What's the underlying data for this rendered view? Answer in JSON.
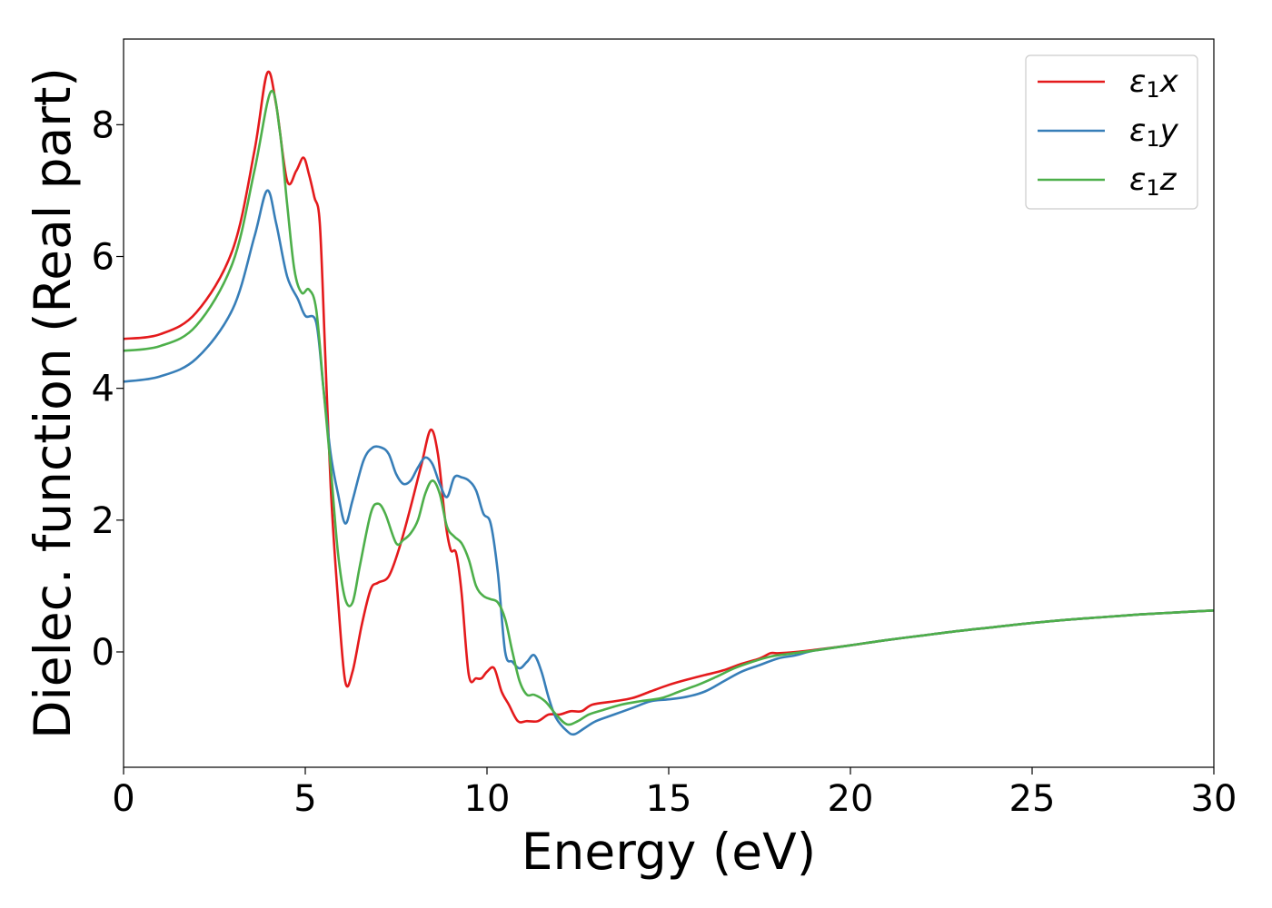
{
  "chart_data": {
    "type": "line",
    "title": "",
    "xlabel": "Energy (eV)",
    "ylabel": "Dielec. function (Real part)",
    "xlim": [
      0,
      30
    ],
    "ylim": [
      -1.75,
      9.3
    ],
    "xticks": [
      0,
      5,
      10,
      15,
      20,
      25,
      30
    ],
    "yticks": [
      0,
      2,
      4,
      6,
      8
    ],
    "grid": false,
    "legend_position": "top-right",
    "series": [
      {
        "name": "ε1x",
        "legend_base": "ε",
        "legend_sub": "1",
        "legend_suffix": "x",
        "color": "#e41a1c",
        "points": [
          [
            0,
            4.75
          ],
          [
            1,
            4.82
          ],
          [
            2,
            5.15
          ],
          [
            3,
            6.1
          ],
          [
            3.6,
            7.6
          ],
          [
            3.95,
            8.78
          ],
          [
            4.2,
            8.3
          ],
          [
            4.5,
            7.15
          ],
          [
            4.75,
            7.3
          ],
          [
            4.95,
            7.5
          ],
          [
            5.1,
            7.25
          ],
          [
            5.25,
            6.9
          ],
          [
            5.4,
            6.5
          ],
          [
            5.55,
            4.5
          ],
          [
            5.7,
            2.5
          ],
          [
            5.9,
            0.8
          ],
          [
            6.1,
            -0.45
          ],
          [
            6.3,
            -0.3
          ],
          [
            6.55,
            0.4
          ],
          [
            6.8,
            0.95
          ],
          [
            7.0,
            1.05
          ],
          [
            7.3,
            1.15
          ],
          [
            7.6,
            1.6
          ],
          [
            7.9,
            2.2
          ],
          [
            8.2,
            2.85
          ],
          [
            8.45,
            3.37
          ],
          [
            8.65,
            3.0
          ],
          [
            8.85,
            2.0
          ],
          [
            9.0,
            1.55
          ],
          [
            9.15,
            1.5
          ],
          [
            9.3,
            0.9
          ],
          [
            9.5,
            -0.35
          ],
          [
            9.7,
            -0.4
          ],
          [
            9.85,
            -0.4
          ],
          [
            10.0,
            -0.3
          ],
          [
            10.2,
            -0.25
          ],
          [
            10.4,
            -0.6
          ],
          [
            10.6,
            -0.8
          ],
          [
            10.85,
            -1.05
          ],
          [
            11.1,
            -1.05
          ],
          [
            11.4,
            -1.05
          ],
          [
            11.7,
            -0.95
          ],
          [
            12.0,
            -0.95
          ],
          [
            12.3,
            -0.9
          ],
          [
            12.6,
            -0.9
          ],
          [
            12.9,
            -0.8
          ],
          [
            13.5,
            -0.75
          ],
          [
            14.0,
            -0.7
          ],
          [
            14.5,
            -0.6
          ],
          [
            15.0,
            -0.5
          ],
          [
            15.5,
            -0.42
          ],
          [
            16.0,
            -0.35
          ],
          [
            16.5,
            -0.28
          ],
          [
            17.0,
            -0.18
          ],
          [
            17.5,
            -0.1
          ],
          [
            17.8,
            -0.02
          ],
          [
            18.0,
            -0.02
          ],
          [
            18.5,
            0.0
          ],
          [
            19.0,
            0.03
          ],
          [
            20.0,
            0.1
          ],
          [
            21.0,
            0.18
          ],
          [
            22.0,
            0.25
          ],
          [
            23.0,
            0.32
          ],
          [
            24.0,
            0.38
          ],
          [
            25.0,
            0.44
          ],
          [
            26.0,
            0.49
          ],
          [
            27.0,
            0.53
          ],
          [
            28.0,
            0.57
          ],
          [
            29.0,
            0.6
          ],
          [
            30.0,
            0.63
          ]
        ]
      },
      {
        "name": "ε1y",
        "legend_base": "ε",
        "legend_sub": "1",
        "legend_suffix": "y",
        "color": "#377eb8",
        "points": [
          [
            0,
            4.1
          ],
          [
            1,
            4.18
          ],
          [
            2,
            4.45
          ],
          [
            3,
            5.2
          ],
          [
            3.6,
            6.3
          ],
          [
            3.95,
            7.0
          ],
          [
            4.2,
            6.5
          ],
          [
            4.5,
            5.7
          ],
          [
            4.8,
            5.35
          ],
          [
            5.0,
            5.1
          ],
          [
            5.3,
            5.0
          ],
          [
            5.5,
            4.0
          ],
          [
            5.7,
            3.0
          ],
          [
            5.9,
            2.4
          ],
          [
            6.1,
            1.95
          ],
          [
            6.3,
            2.3
          ],
          [
            6.6,
            2.9
          ],
          [
            6.85,
            3.1
          ],
          [
            7.1,
            3.1
          ],
          [
            7.3,
            3.0
          ],
          [
            7.5,
            2.7
          ],
          [
            7.7,
            2.55
          ],
          [
            7.9,
            2.6
          ],
          [
            8.1,
            2.8
          ],
          [
            8.3,
            2.95
          ],
          [
            8.5,
            2.85
          ],
          [
            8.7,
            2.55
          ],
          [
            8.9,
            2.35
          ],
          [
            9.1,
            2.65
          ],
          [
            9.3,
            2.65
          ],
          [
            9.5,
            2.6
          ],
          [
            9.7,
            2.45
          ],
          [
            9.9,
            2.1
          ],
          [
            10.1,
            1.95
          ],
          [
            10.3,
            1.2
          ],
          [
            10.5,
            0.0
          ],
          [
            10.7,
            -0.15
          ],
          [
            10.9,
            -0.25
          ],
          [
            11.1,
            -0.15
          ],
          [
            11.3,
            -0.05
          ],
          [
            11.5,
            -0.3
          ],
          [
            11.7,
            -0.7
          ],
          [
            11.9,
            -1.0
          ],
          [
            12.2,
            -1.2
          ],
          [
            12.4,
            -1.25
          ],
          [
            12.7,
            -1.15
          ],
          [
            13.0,
            -1.05
          ],
          [
            13.5,
            -0.95
          ],
          [
            14.0,
            -0.85
          ],
          [
            14.5,
            -0.75
          ],
          [
            15.0,
            -0.72
          ],
          [
            15.5,
            -0.68
          ],
          [
            16.0,
            -0.6
          ],
          [
            16.5,
            -0.45
          ],
          [
            17.0,
            -0.3
          ],
          [
            17.5,
            -0.2
          ],
          [
            18.0,
            -0.1
          ],
          [
            18.5,
            -0.05
          ],
          [
            19.0,
            0.02
          ],
          [
            20.0,
            0.1
          ],
          [
            21.0,
            0.18
          ],
          [
            22.0,
            0.25
          ],
          [
            23.0,
            0.32
          ],
          [
            24.0,
            0.38
          ],
          [
            25.0,
            0.44
          ],
          [
            26.0,
            0.49
          ],
          [
            27.0,
            0.53
          ],
          [
            28.0,
            0.57
          ],
          [
            29.0,
            0.6
          ],
          [
            30.0,
            0.63
          ]
        ]
      },
      {
        "name": "ε1z",
        "legend_base": "ε",
        "legend_sub": "1",
        "legend_suffix": "z",
        "color": "#4daf4a",
        "points": [
          [
            0,
            4.57
          ],
          [
            1,
            4.64
          ],
          [
            2,
            4.95
          ],
          [
            3,
            5.9
          ],
          [
            3.6,
            7.3
          ],
          [
            4.05,
            8.5
          ],
          [
            4.3,
            7.9
          ],
          [
            4.5,
            6.8
          ],
          [
            4.7,
            5.8
          ],
          [
            4.9,
            5.45
          ],
          [
            5.1,
            5.5
          ],
          [
            5.3,
            5.2
          ],
          [
            5.5,
            4.0
          ],
          [
            5.7,
            2.8
          ],
          [
            5.9,
            1.5
          ],
          [
            6.1,
            0.8
          ],
          [
            6.3,
            0.75
          ],
          [
            6.5,
            1.3
          ],
          [
            6.8,
            2.1
          ],
          [
            7.0,
            2.25
          ],
          [
            7.2,
            2.1
          ],
          [
            7.5,
            1.65
          ],
          [
            7.7,
            1.7
          ],
          [
            7.9,
            1.8
          ],
          [
            8.1,
            2.0
          ],
          [
            8.3,
            2.4
          ],
          [
            8.5,
            2.6
          ],
          [
            8.7,
            2.4
          ],
          [
            8.9,
            1.9
          ],
          [
            9.1,
            1.75
          ],
          [
            9.3,
            1.65
          ],
          [
            9.5,
            1.4
          ],
          [
            9.7,
            1.0
          ],
          [
            9.9,
            0.85
          ],
          [
            10.1,
            0.8
          ],
          [
            10.3,
            0.75
          ],
          [
            10.5,
            0.5
          ],
          [
            10.7,
            0.0
          ],
          [
            10.9,
            -0.45
          ],
          [
            11.1,
            -0.65
          ],
          [
            11.3,
            -0.65
          ],
          [
            11.6,
            -0.75
          ],
          [
            11.9,
            -0.95
          ],
          [
            12.2,
            -1.1
          ],
          [
            12.5,
            -1.05
          ],
          [
            12.8,
            -0.95
          ],
          [
            13.2,
            -0.88
          ],
          [
            13.7,
            -0.8
          ],
          [
            14.2,
            -0.75
          ],
          [
            14.8,
            -0.7
          ],
          [
            15.3,
            -0.6
          ],
          [
            15.8,
            -0.5
          ],
          [
            16.3,
            -0.38
          ],
          [
            16.8,
            -0.25
          ],
          [
            17.3,
            -0.15
          ],
          [
            17.8,
            -0.07
          ],
          [
            18.3,
            -0.03
          ],
          [
            19.0,
            0.02
          ],
          [
            20.0,
            0.1
          ],
          [
            21.0,
            0.18
          ],
          [
            22.0,
            0.25
          ],
          [
            23.0,
            0.32
          ],
          [
            24.0,
            0.38
          ],
          [
            25.0,
            0.44
          ],
          [
            26.0,
            0.49
          ],
          [
            27.0,
            0.53
          ],
          [
            28.0,
            0.57
          ],
          [
            29.0,
            0.6
          ],
          [
            30.0,
            0.63
          ]
        ]
      }
    ]
  }
}
